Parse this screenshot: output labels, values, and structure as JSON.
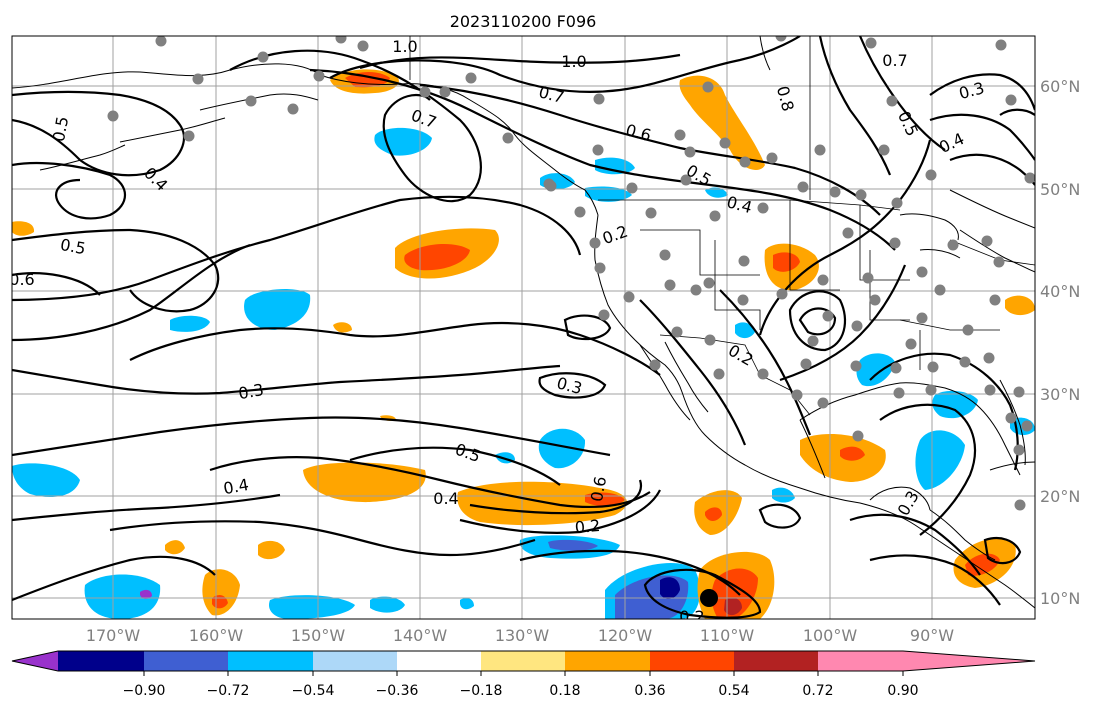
{
  "title": "2023110200 F096",
  "lon_labels": [
    "170°W",
    "160°W",
    "150°W",
    "140°W",
    "130°W",
    "120°W",
    "110°W",
    "100°W",
    "90°W"
  ],
  "lat_labels": [
    "60°N",
    "50°N",
    "40°N",
    "30°N",
    "20°N",
    "10°N"
  ],
  "colorbar": {
    "colors": [
      "#9932cc",
      "#00008b",
      "#3f5fd2",
      "#00bfff",
      "#add8f8",
      "#ffffff",
      "#ffe680",
      "#ffa500",
      "#ff4500",
      "#b22222",
      "#ff88b0"
    ],
    "tick_labels": [
      "−0.90",
      "−0.72",
      "−0.54",
      "−0.36",
      "−0.18",
      "0.18",
      "0.36",
      "0.54",
      "0.72",
      "0.90"
    ]
  },
  "contour_labels": [
    "1.0",
    "1.0",
    "0.7",
    "0.7",
    "0.7",
    "0.8",
    "0.5",
    "0.5",
    "0.6",
    "0.4",
    "0.4",
    "0.5",
    "0.6",
    "0.5",
    "0.4",
    "0.2",
    "0.2",
    "0.3",
    "0.3",
    "0.5",
    "0.4",
    "0.4",
    "0.6",
    "0.2",
    "0.3",
    "0.3",
    "0.2"
  ],
  "colors": {
    "orange": "#ffa500",
    "red": "#ff4500",
    "lightblue": "#00bfff",
    "blue": "#3f5fd2",
    "darkblue": "#00008b",
    "station": "#808080"
  }
}
